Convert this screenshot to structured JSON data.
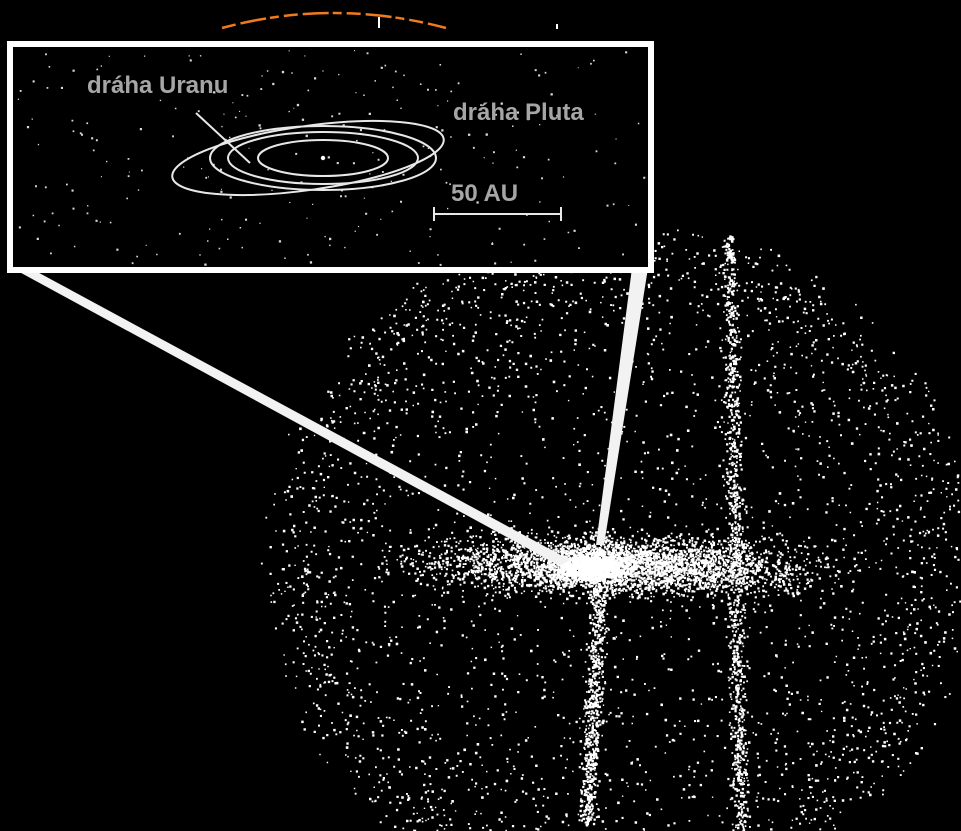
{
  "colors": {
    "background": "#000000",
    "dots": "#ffffff",
    "labels": "#a6a6a6",
    "orbit_lines": "#e8e8e8",
    "arc_accent": "#f07a1e"
  },
  "inset": {
    "label_uranus": "dráha Uranu",
    "label_pluto": "dráha Pluta",
    "scale_label": "50 AU"
  }
}
